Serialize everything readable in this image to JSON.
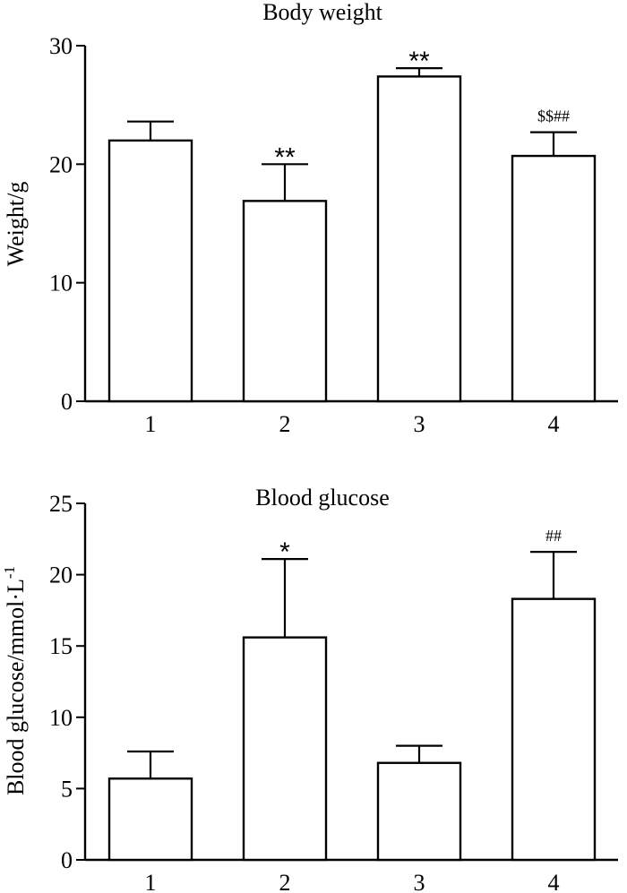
{
  "chart_data": [
    {
      "type": "bar",
      "title": "Body weight",
      "xlabel": "",
      "ylabel": "Weight/g",
      "categories": [
        "1",
        "2",
        "3",
        "4"
      ],
      "values": [
        22.0,
        16.9,
        27.4,
        20.7
      ],
      "errors": [
        1.6,
        3.1,
        0.7,
        2.0
      ],
      "annotations": [
        "",
        "**",
        "**",
        "$$##"
      ],
      "ylim": [
        0,
        30
      ],
      "yticks": [
        0,
        10,
        20,
        30
      ]
    },
    {
      "type": "bar",
      "title": "Blood glucose",
      "xlabel": "",
      "ylabel": "Blood glucose/mmol·L",
      "ylabel_superscript": "-1",
      "categories": [
        "1",
        "2",
        "3",
        "4"
      ],
      "values": [
        5.7,
        15.6,
        6.8,
        18.3
      ],
      "errors": [
        1.9,
        5.5,
        1.2,
        3.3
      ],
      "annotations": [
        "",
        "*",
        "",
        "##"
      ],
      "ylim": [
        0,
        25
      ],
      "yticks": [
        0,
        5,
        10,
        15,
        20,
        25
      ]
    }
  ]
}
